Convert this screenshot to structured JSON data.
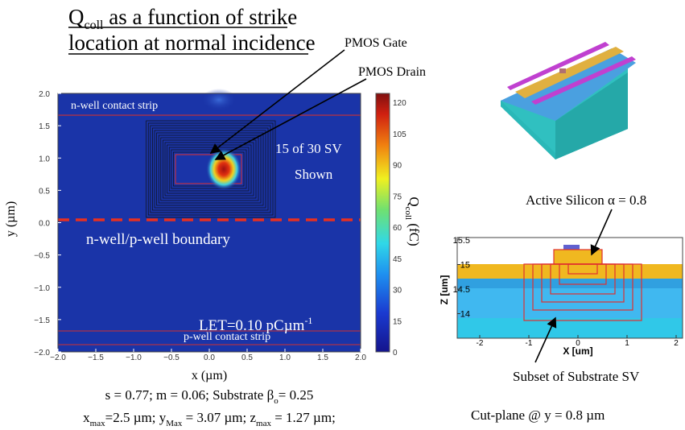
{
  "title": {
    "line1": {
      "q": "Q",
      "sub": "coll",
      "rest": " as a function of strike"
    },
    "line2": "location at normal incidence"
  },
  "annotations": {
    "gate": "PMOS Gate",
    "drain": "PMOS Drain",
    "nwell_strip": "n-well contact strip",
    "sv_count": "15 of 30 SV",
    "shown": "Shown",
    "boundary": "n-well/p-well boundary",
    "let": {
      "text": "LET=0.10 pCµm",
      "sup": "-1"
    },
    "pwell_strip": "p-well contact strip"
  },
  "heatmap": {
    "xlabel": "x (µm)",
    "ylabel": "y (µm)",
    "xticks": [
      "−2.0",
      "−1.5",
      "−1.0",
      "−0.5",
      "0.0",
      "0.5",
      "1.0",
      "1.5",
      "2.0"
    ],
    "yticks": [
      "−2.0",
      "−1.5",
      "−1.0",
      "−0.5",
      "0.0",
      "0.5",
      "1.0",
      "1.5",
      "2.0"
    ],
    "colorbar": {
      "ticks": [
        "0",
        "15",
        "30",
        "45",
        "60",
        "75",
        "90",
        "105",
        "120"
      ],
      "label": {
        "q": "Q",
        "sub": "coll",
        "rest": " (fC)"
      }
    }
  },
  "caption": {
    "line1": {
      "a": "s = 0.77; m = 0.06; Substrate β",
      "sub": "o",
      "b": "= 0.25"
    },
    "line2": {
      "x": "x",
      "xsub": "max",
      "a": "=2.5 µm; y",
      "ysub": "Max",
      "b": " = 3.07 µm; z",
      "zsub": "max",
      "c": " = 1.27 µm;"
    }
  },
  "crosssection": {
    "active": "Active Silicon α = 0.8",
    "xlabel": "X [um]",
    "ylabel": "Z [um]",
    "xticks": [
      "-2",
      "-1",
      "0",
      "1",
      "2"
    ],
    "yticks": [
      "15.5",
      "15",
      "14.5",
      "14"
    ],
    "subset": "Subset of Substrate SV",
    "cutplane": "Cut-plane @ y = 0.8 µm"
  }
}
